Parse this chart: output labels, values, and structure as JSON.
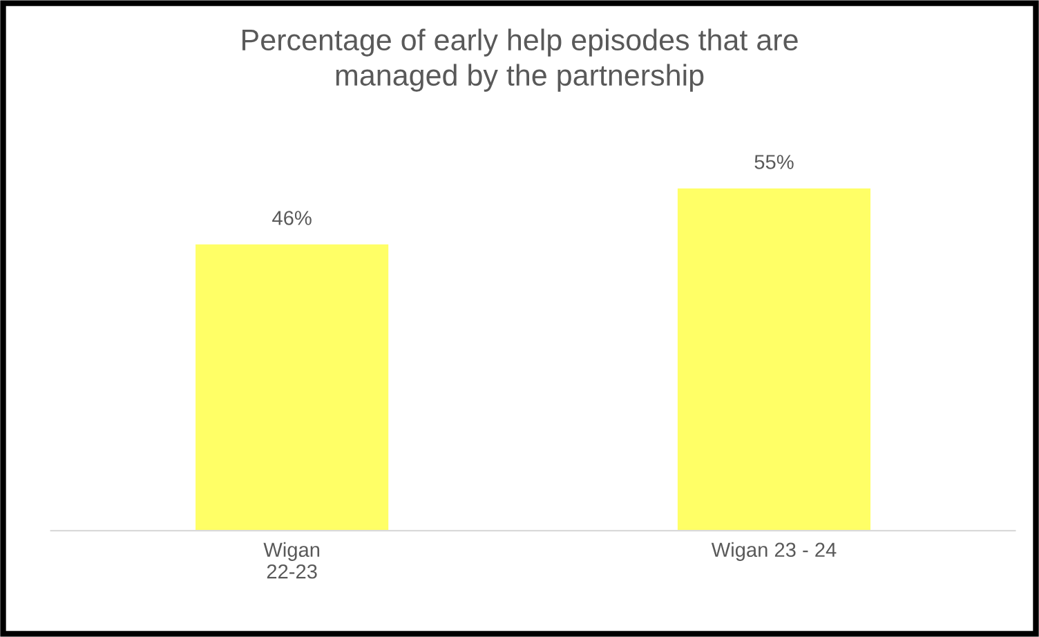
{
  "chart_data": {
    "type": "bar",
    "title": "Percentage of early help episodes that are\nmanaged by the partnership",
    "categories": [
      "Wigan\n22-23",
      "Wigan 23 - 24"
    ],
    "values": [
      46,
      55
    ],
    "color": "#ffff66",
    "value_labels": [
      "46%",
      "55%"
    ],
    "tick_labels": "x",
    "grid": false,
    "legend": false
  }
}
